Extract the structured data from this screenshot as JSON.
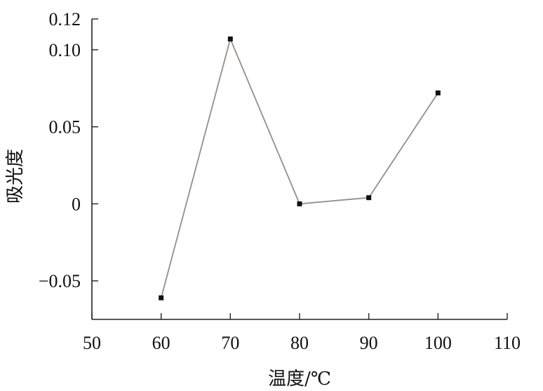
{
  "chart_data": {
    "type": "line",
    "xlabel": "温度/℃",
    "ylabel": "吸光度",
    "xlim": [
      50,
      110
    ],
    "ylim": [
      -0.075,
      0.12
    ],
    "x_ticks": [
      50,
      60,
      70,
      80,
      90,
      100,
      110
    ],
    "x_tick_labels": [
      "50",
      "60",
      "70",
      "80",
      "90",
      "100",
      "110"
    ],
    "y_ticks": [
      -0.05,
      0,
      0.05,
      0.1,
      0.12
    ],
    "y_tick_labels": [
      "−0.05",
      "0",
      "0.05",
      "0.10",
      "0.12"
    ],
    "grid": false,
    "series": [
      {
        "x": [
          60,
          70,
          80,
          90,
          100
        ],
        "values": [
          -0.061,
          0.107,
          0.0,
          0.004,
          0.072
        ],
        "color": "#9a8c8c",
        "marker_color": "#111111"
      }
    ]
  }
}
